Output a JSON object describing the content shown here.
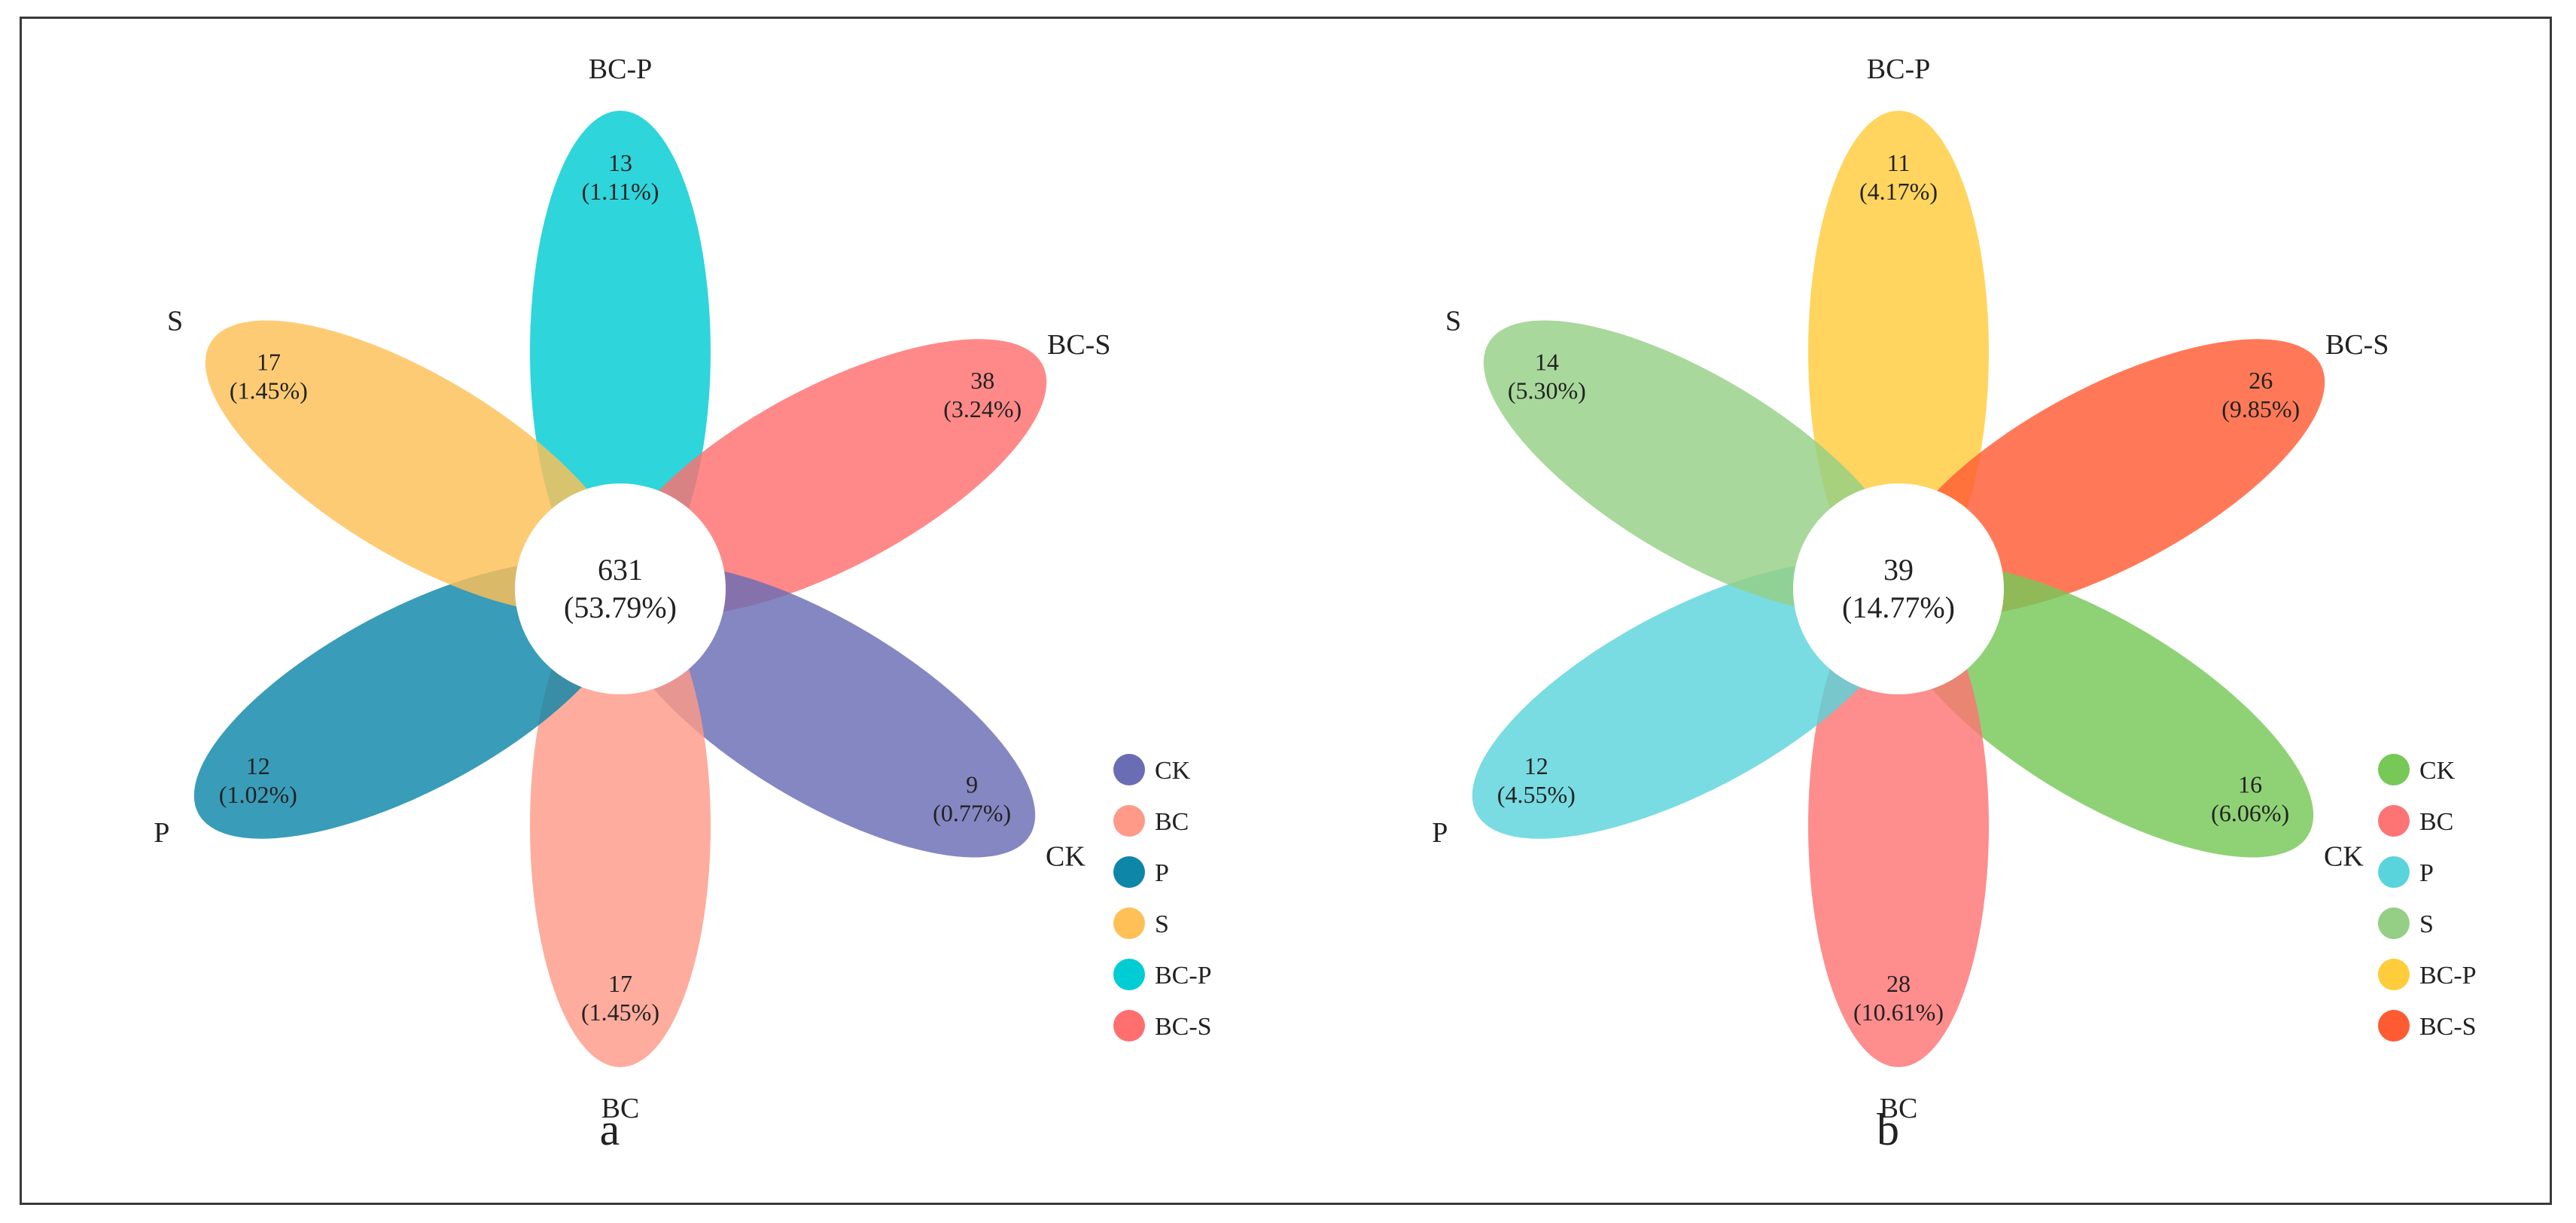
{
  "panels": [
    {
      "panel_label": "a",
      "center": {
        "count": "631",
        "percent": "(53.79%)"
      },
      "petals": [
        {
          "set": "BC-P",
          "count": "13",
          "percent": "(1.11%)",
          "color": "#00ccd3"
        },
        {
          "set": "BC-S",
          "count": "38",
          "percent": "(3.24%)",
          "color": "#ff6f6f"
        },
        {
          "set": "CK",
          "count": "9",
          "percent": "(0.77%)",
          "color": "#6a6db4"
        },
        {
          "set": "BC",
          "count": "17",
          "percent": "(1.45%)",
          "color": "#fe9a87"
        },
        {
          "set": "P",
          "count": "12",
          "percent": "(1.02%)",
          "color": "#0d86a8"
        },
        {
          "set": "S",
          "count": "17",
          "percent": "(1.45%)",
          "color": "#fec057"
        }
      ],
      "legend": [
        {
          "label": "CK",
          "color": "#6a6db4"
        },
        {
          "label": "BC",
          "color": "#fe9a87"
        },
        {
          "label": "P",
          "color": "#0d86a8"
        },
        {
          "label": "S",
          "color": "#fec057"
        },
        {
          "label": "BC-P",
          "color": "#00ccd3"
        },
        {
          "label": "BC-S",
          "color": "#ff6f6f"
        }
      ]
    },
    {
      "panel_label": "b",
      "center": {
        "count": "39",
        "percent": "(14.77%)"
      },
      "petals": [
        {
          "set": "BC-P",
          "count": "11",
          "percent": "(4.17%)",
          "color": "#ffcc3c"
        },
        {
          "set": "BC-S",
          "count": "26",
          "percent": "(9.85%)",
          "color": "#ff5b33"
        },
        {
          "set": "CK",
          "count": "16",
          "percent": "(6.06%)",
          "color": "#76c857"
        },
        {
          "set": "BC",
          "count": "28",
          "percent": "(10.61%)",
          "color": "#fe7474"
        },
        {
          "set": "P",
          "count": "12",
          "percent": "(4.55%)",
          "color": "#5ad4dc"
        },
        {
          "set": "S",
          "count": "14",
          "percent": "(5.30%)",
          "color": "#95cf85"
        }
      ],
      "legend": [
        {
          "label": "CK",
          "color": "#76c857"
        },
        {
          "label": "BC",
          "color": "#fe7474"
        },
        {
          "label": "P",
          "color": "#5ad4dc"
        },
        {
          "label": "S",
          "color": "#95cf85"
        },
        {
          "label": "BC-P",
          "color": "#ffcc3c"
        },
        {
          "label": "BC-S",
          "color": "#ff5b33"
        }
      ]
    }
  ]
}
